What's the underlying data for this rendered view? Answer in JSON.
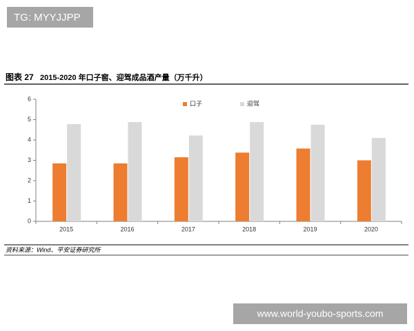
{
  "watermark_top": "TG: MYYJJPP",
  "watermark_bottom": "www.world-youbo-sports.com",
  "chart_data": {
    "type": "bar",
    "figure_label": "图表 27",
    "title": "2015-2020 年口子窖、迎驾成品酒产量（万千升）",
    "source": "资料来源：Wind、平安证券研究所",
    "categories": [
      "2015",
      "2016",
      "2017",
      "2018",
      "2019",
      "2020"
    ],
    "series": [
      {
        "name": "口子",
        "color": "#ed7d31",
        "values": [
          2.85,
          2.85,
          3.15,
          3.38,
          3.58,
          3.0
        ]
      },
      {
        "name": "迎驾",
        "color": "#d9d9d9",
        "values": [
          4.78,
          4.88,
          4.22,
          4.88,
          4.75,
          4.1
        ]
      }
    ],
    "ylim": [
      0,
      6
    ],
    "yticks": [
      0,
      1,
      2,
      3,
      4,
      5,
      6
    ],
    "legend": "top"
  }
}
